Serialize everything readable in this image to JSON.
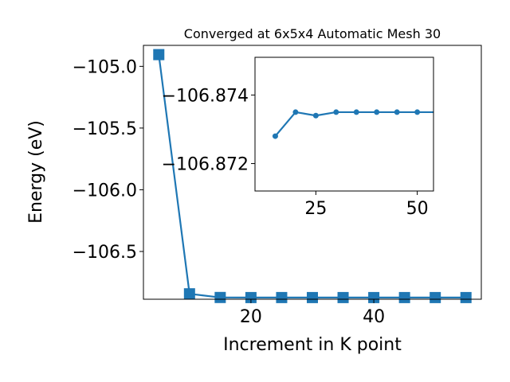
{
  "colors": {
    "series": "#1f77b4",
    "axes": "#000000",
    "background": "#ffffff"
  },
  "chart_data": [
    {
      "type": "line",
      "title": "Converged at 6x5x4 Automatic Mesh 30",
      "xlabel": "Increment in K point",
      "ylabel": "Energy (eV)",
      "marker": "square",
      "grid": false,
      "xlim": [
        2.5,
        57.5
      ],
      "ylim": [
        -106.887,
        -104.83
      ],
      "xticks": [
        20,
        40
      ],
      "xtick_labels": [
        "20",
        "40"
      ],
      "yticks": [
        -105.0,
        -105.5,
        -106.0,
        -106.5
      ],
      "ytick_labels": [
        "−105.0",
        "−105.5",
        "−106.0",
        "−106.5"
      ],
      "series": [
        {
          "x": [
            5,
            10,
            15,
            20,
            25,
            30,
            35,
            40,
            45,
            50,
            55
          ],
          "y": [
            -104.905,
            -106.843,
            -106.8728,
            -106.8735,
            -106.8734,
            -106.8735,
            -106.8735,
            -106.8735,
            -106.8735,
            -106.8735,
            -106.8735
          ]
        }
      ]
    },
    {
      "type": "line",
      "title": "",
      "xlabel": "",
      "ylabel": "",
      "marker": "circle",
      "grid": false,
      "xlim": [
        10,
        54
      ],
      "ylim": [
        -106.8712,
        -106.8751
      ],
      "xticks": [
        25,
        50
      ],
      "xtick_labels": [
        "25",
        "50"
      ],
      "yticks": [
        -106.874,
        -106.872
      ],
      "ytick_labels": [
        "−106.874",
        "−106.872"
      ],
      "series": [
        {
          "x": [
            15,
            20,
            25,
            30,
            35,
            40,
            45,
            50,
            55
          ],
          "y": [
            -106.8728,
            -106.8735,
            -106.8734,
            -106.8735,
            -106.8735,
            -106.8735,
            -106.8735,
            -106.8735,
            -106.8735
          ]
        }
      ]
    }
  ]
}
